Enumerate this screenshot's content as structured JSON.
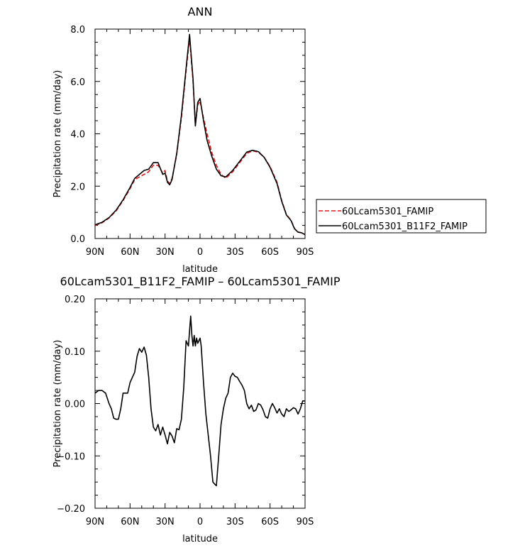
{
  "chart_data": [
    {
      "type": "line",
      "title": "ANN",
      "xlabel": "latitude",
      "ylabel": "Precipitation rate (mm/day)",
      "xlim": [
        90,
        -90
      ],
      "ylim": [
        0.0,
        8.0
      ],
      "xticks": [
        90,
        60,
        30,
        0,
        -30,
        -60,
        -90
      ],
      "xtick_labels": [
        "90N",
        "60N",
        "30N",
        "0",
        "30S",
        "60S",
        "90S"
      ],
      "yticks": [
        0.0,
        2.0,
        4.0,
        6.0,
        8.0
      ],
      "ytick_labels": [
        "0.0",
        "2.0",
        "4.0",
        "6.0",
        "8.0"
      ],
      "legend_position": "right",
      "series": [
        {
          "name": "60Lcam5301_FAMIP",
          "color": "#e0191b",
          "dash": "dashed",
          "points": [
            [
              90,
              0.5
            ],
            [
              84,
              0.6
            ],
            [
              78,
              0.78
            ],
            [
              72,
              1.05
            ],
            [
              66,
              1.45
            ],
            [
              60,
              1.9
            ],
            [
              56,
              2.25
            ],
            [
              52,
              2.35
            ],
            [
              48,
              2.45
            ],
            [
              44,
              2.55
            ],
            [
              40,
              2.8
            ],
            [
              36,
              2.8
            ],
            [
              32,
              2.5
            ],
            [
              30,
              2.6
            ],
            [
              28,
              2.2
            ],
            [
              26,
              2.1
            ],
            [
              24,
              2.3
            ],
            [
              20,
              3.2
            ],
            [
              16,
              4.6
            ],
            [
              12,
              6.4
            ],
            [
              9,
              7.65
            ],
            [
              6,
              6.0
            ],
            [
              4,
              4.35
            ],
            [
              2,
              5.1
            ],
            [
              0,
              5.25
            ],
            [
              -3,
              4.6
            ],
            [
              -6,
              4.0
            ],
            [
              -10,
              3.3
            ],
            [
              -14,
              2.8
            ],
            [
              -18,
              2.45
            ],
            [
              -22,
              2.3
            ],
            [
              -28,
              2.55
            ],
            [
              -34,
              2.9
            ],
            [
              -40,
              3.25
            ],
            [
              -45,
              3.35
            ],
            [
              -50,
              3.3
            ],
            [
              -55,
              3.1
            ],
            [
              -60,
              2.75
            ],
            [
              -66,
              2.15
            ],
            [
              -70,
              1.45
            ],
            [
              -74,
              0.92
            ],
            [
              -78,
              0.7
            ],
            [
              -81,
              0.38
            ],
            [
              -84,
              0.25
            ],
            [
              -87,
              0.22
            ],
            [
              -90,
              0.15
            ]
          ]
        },
        {
          "name": "60Lcam5301_B11F2_FAMIP",
          "color": "#000000",
          "dash": "solid",
          "points": [
            [
              90,
              0.52
            ],
            [
              84,
              0.62
            ],
            [
              78,
              0.8
            ],
            [
              72,
              1.08
            ],
            [
              66,
              1.48
            ],
            [
              60,
              1.95
            ],
            [
              56,
              2.3
            ],
            [
              52,
              2.45
            ],
            [
              48,
              2.6
            ],
            [
              44,
              2.65
            ],
            [
              40,
              2.9
            ],
            [
              36,
              2.9
            ],
            [
              32,
              2.45
            ],
            [
              30,
              2.5
            ],
            [
              28,
              2.15
            ],
            [
              26,
              2.05
            ],
            [
              24,
              2.25
            ],
            [
              20,
              3.25
            ],
            [
              16,
              4.7
            ],
            [
              12,
              6.5
            ],
            [
              9,
              7.8
            ],
            [
              6,
              6.1
            ],
            [
              4,
              4.3
            ],
            [
              2,
              5.2
            ],
            [
              0,
              5.35
            ],
            [
              -3,
              4.5
            ],
            [
              -6,
              3.75
            ],
            [
              -10,
              3.15
            ],
            [
              -14,
              2.65
            ],
            [
              -18,
              2.4
            ],
            [
              -22,
              2.35
            ],
            [
              -28,
              2.6
            ],
            [
              -34,
              2.95
            ],
            [
              -40,
              3.3
            ],
            [
              -45,
              3.37
            ],
            [
              -50,
              3.32
            ],
            [
              -55,
              3.1
            ],
            [
              -60,
              2.72
            ],
            [
              -66,
              2.1
            ],
            [
              -70,
              1.42
            ],
            [
              -74,
              0.9
            ],
            [
              -78,
              0.68
            ],
            [
              -81,
              0.37
            ],
            [
              -84,
              0.24
            ],
            [
              -87,
              0.22
            ],
            [
              -90,
              0.15
            ]
          ]
        }
      ]
    },
    {
      "type": "line",
      "title": "60Lcam5301_B11F2_FAMIP – 60Lcam5301_FAMIP",
      "xlabel": "latitude",
      "ylabel": "Precipitation rate (mm/day)",
      "xlim": [
        90,
        -90
      ],
      "ylim": [
        -0.2,
        0.2
      ],
      "xticks": [
        90,
        60,
        30,
        0,
        -30,
        -60,
        -90
      ],
      "xtick_labels": [
        "90N",
        "60N",
        "30N",
        "0",
        "30S",
        "60S",
        "90S"
      ],
      "yticks": [
        -0.2,
        -0.1,
        0.0,
        0.1,
        0.2
      ],
      "ytick_labels": [
        "−0.20",
        "−0.10",
        "0.00",
        "0.10",
        "0.20"
      ],
      "series": [
        {
          "color": "#000000",
          "dash": "solid",
          "points": [
            [
              90,
              0.02
            ],
            [
              87,
              0.025
            ],
            [
              84,
              0.025
            ],
            [
              81,
              0.02
            ],
            [
              78,
              0.0
            ],
            [
              76,
              -0.01
            ],
            [
              74,
              -0.028
            ],
            [
              72,
              -0.03
            ],
            [
              70,
              -0.03
            ],
            [
              68,
              -0.01
            ],
            [
              66,
              0.02
            ],
            [
              64,
              0.02
            ],
            [
              62,
              0.02
            ],
            [
              60,
              0.04
            ],
            [
              58,
              0.05
            ],
            [
              56,
              0.06
            ],
            [
              54,
              0.09
            ],
            [
              52,
              0.105
            ],
            [
              50,
              0.098
            ],
            [
              48,
              0.108
            ],
            [
              46,
              0.092
            ],
            [
              44,
              0.05
            ],
            [
              42,
              -0.01
            ],
            [
              40,
              -0.045
            ],
            [
              38,
              -0.052
            ],
            [
              36,
              -0.04
            ],
            [
              34,
              -0.06
            ],
            [
              32,
              -0.045
            ],
            [
              30,
              -0.06
            ],
            [
              28,
              -0.077
            ],
            [
              26,
              -0.055
            ],
            [
              24,
              -0.062
            ],
            [
              22,
              -0.075
            ],
            [
              20,
              -0.048
            ],
            [
              18,
              -0.05
            ],
            [
              16,
              -0.03
            ],
            [
              14,
              0.03
            ],
            [
              12,
              0.12
            ],
            [
              10,
              0.11
            ],
            [
              8,
              0.167
            ],
            [
              7,
              0.13
            ],
            [
              6,
              0.11
            ],
            [
              5,
              0.13
            ],
            [
              4,
              0.11
            ],
            [
              3,
              0.125
            ],
            [
              2,
              0.115
            ],
            [
              1,
              0.12
            ],
            [
              0,
              0.125
            ],
            [
              -1,
              0.11
            ],
            [
              -3,
              0.04
            ],
            [
              -5,
              -0.02
            ],
            [
              -7,
              -0.06
            ],
            [
              -9,
              -0.1
            ],
            [
              -11,
              -0.15
            ],
            [
              -13,
              -0.155
            ],
            [
              -14,
              -0.157
            ],
            [
              -16,
              -0.1
            ],
            [
              -18,
              -0.04
            ],
            [
              -20,
              -0.01
            ],
            [
              -22,
              0.01
            ],
            [
              -24,
              0.02
            ],
            [
              -26,
              0.05
            ],
            [
              -28,
              0.058
            ],
            [
              -30,
              0.052
            ],
            [
              -32,
              0.05
            ],
            [
              -34,
              0.042
            ],
            [
              -36,
              0.035
            ],
            [
              -38,
              0.025
            ],
            [
              -40,
              0.0
            ],
            [
              -42,
              -0.01
            ],
            [
              -44,
              -0.003
            ],
            [
              -46,
              -0.015
            ],
            [
              -48,
              -0.012
            ],
            [
              -50,
              0.0
            ],
            [
              -52,
              -0.003
            ],
            [
              -54,
              -0.012
            ],
            [
              -56,
              -0.025
            ],
            [
              -58,
              -0.028
            ],
            [
              -60,
              -0.01
            ],
            [
              -62,
              0.0
            ],
            [
              -64,
              -0.008
            ],
            [
              -66,
              -0.018
            ],
            [
              -68,
              -0.01
            ],
            [
              -70,
              -0.02
            ],
            [
              -72,
              -0.025
            ],
            [
              -74,
              -0.01
            ],
            [
              -76,
              -0.015
            ],
            [
              -78,
              -0.012
            ],
            [
              -80,
              -0.008
            ],
            [
              -82,
              -0.01
            ],
            [
              -84,
              -0.02
            ],
            [
              -86,
              -0.01
            ],
            [
              -88,
              0.005
            ],
            [
              -90,
              0.005
            ]
          ]
        }
      ]
    }
  ]
}
